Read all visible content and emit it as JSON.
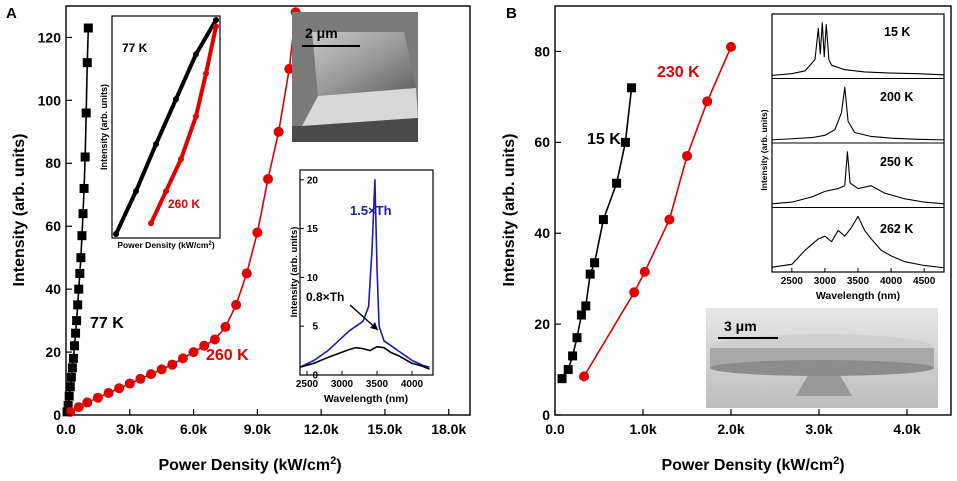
{
  "colors": {
    "black": "#000000",
    "red": "#e00000",
    "blue": "#1a1ab8",
    "sem_light": "#d4d4d4",
    "sem_dark": "#6e6e6e"
  },
  "chart_data": [
    {
      "type": "scatter",
      "panel_label": "A",
      "xlabel": "Power Density (kW/cm2)",
      "ylabel": "Intensity (arb. units)",
      "xlim": [
        0,
        19000
      ],
      "ylim": [
        0,
        130
      ],
      "xticks": [
        "0.0",
        "3.0k",
        "6.0k",
        "9.0k",
        "12.0k",
        "15.0k",
        "18.0k"
      ],
      "yticks": [
        "0",
        "20",
        "40",
        "60",
        "80",
        "100",
        "120"
      ],
      "series": [
        {
          "name": "77 K",
          "color": "#000000",
          "marker": "square",
          "x": [
            50,
            100,
            150,
            200,
            250,
            300,
            350,
            400,
            450,
            500,
            550,
            600,
            650,
            700,
            750,
            800,
            850,
            900,
            950,
            1000,
            1050
          ],
          "y": [
            1,
            3,
            6,
            9,
            12,
            15,
            18,
            22,
            26,
            30,
            35,
            40,
            45,
            50,
            57,
            64,
            72,
            82,
            96,
            112,
            123
          ]
        },
        {
          "name": "260 K",
          "color": "#e00000",
          "marker": "circle",
          "x": [
            200,
            600,
            1000,
            1500,
            2000,
            2500,
            3000,
            3500,
            4000,
            4500,
            5000,
            5500,
            6000,
            6500,
            7000,
            7500,
            8000,
            8500,
            9000,
            9500,
            10000,
            10500,
            10800
          ],
          "y": [
            1,
            2.5,
            4,
            5.5,
            7,
            8.5,
            10,
            11.5,
            13,
            14.5,
            16,
            18,
            20,
            22,
            24,
            28,
            35,
            45,
            58,
            75,
            90,
            110,
            128
          ]
        }
      ],
      "annotations": [
        {
          "text": "77 K"
        },
        {
          "text": "260 K"
        }
      ],
      "insets": [
        {
          "type": "line",
          "name": "log-log inset",
          "xlabel": "Power Density (kW/cm2)",
          "ylabel": "Intensity (arb. units)",
          "series": [
            {
              "name": "77 K",
              "color": "#000000",
              "x": [
                0,
                0.2,
                0.4,
                0.6,
                0.8,
                1.0
              ],
              "y": [
                0,
                0.2,
                0.42,
                0.63,
                0.84,
                1.0
              ]
            },
            {
              "name": "260 K",
              "color": "#e00000",
              "x": [
                0.35,
                0.5,
                0.65,
                0.8,
                0.9,
                1.0
              ],
              "y": [
                0.05,
                0.2,
                0.35,
                0.55,
                0.75,
                0.97
              ]
            }
          ]
        },
        {
          "type": "image",
          "name": "SEM micropillar",
          "scale_bar": "2 μm"
        },
        {
          "type": "line",
          "name": "spectra inset",
          "xlabel": "Wavelength (nm)",
          "ylabel": "Intensity (arb. units)",
          "xlim": [
            2400,
            4300
          ],
          "ylim": [
            0,
            21
          ],
          "xticks": [
            "2500",
            "3000",
            "3500",
            "4000"
          ],
          "yticks": [
            "0",
            "5",
            "10",
            "15",
            "20"
          ],
          "series": [
            {
              "name": "1.5×Th",
              "color": "#1a1ab8",
              "x": [
                2400,
                2600,
                2800,
                2950,
                3100,
                3200,
                3300,
                3380,
                3430,
                3470,
                3500,
                3530,
                3600,
                3700,
                3800,
                3900,
                4000,
                4150,
                4250
              ],
              "y": [
                0.8,
                1.5,
                2.5,
                3.5,
                4.5,
                5.0,
                5.5,
                7,
                13,
                20,
                11,
                5,
                3.5,
                3,
                2.5,
                2,
                1.5,
                1,
                0.8
              ]
            },
            {
              "name": "0.8×Th",
              "color": "#000000",
              "x": [
                2400,
                2600,
                2800,
                2950,
                3100,
                3200,
                3300,
                3400,
                3500,
                3600,
                3700,
                3800,
                3900,
                4000,
                4150,
                4250
              ],
              "y": [
                0.8,
                1.2,
                1.8,
                2.2,
                2.6,
                2.8,
                2.7,
                2.5,
                2.9,
                2.8,
                2.3,
                2.0,
                1.6,
                1.2,
                0.9,
                0.6
              ]
            }
          ]
        }
      ]
    },
    {
      "type": "scatter",
      "panel_label": "B",
      "xlabel": "Power Density (kW/cm2)",
      "ylabel": "Intensity (arb. units)",
      "xlim": [
        0,
        4500
      ],
      "ylim": [
        0,
        90
      ],
      "xticks": [
        "0.0",
        "1.0k",
        "2.0k",
        "3.0k",
        "4.0k"
      ],
      "yticks": [
        "0",
        "20",
        "40",
        "60",
        "80"
      ],
      "series": [
        {
          "name": "15 K",
          "color": "#000000",
          "marker": "square",
          "x": [
            80,
            150,
            200,
            250,
            300,
            350,
            400,
            450,
            550,
            700,
            800,
            870
          ],
          "y": [
            8,
            10,
            13,
            17,
            22,
            24,
            31,
            33.5,
            43,
            51,
            60,
            72
          ]
        },
        {
          "name": "230 K",
          "color": "#e00000",
          "marker": "circle",
          "x": [
            330,
            900,
            1020,
            1300,
            1500,
            1730,
            2000
          ],
          "y": [
            8.5,
            27,
            31.5,
            43,
            57,
            69,
            81
          ]
        }
      ],
      "annotations": [
        {
          "text": "15 K"
        },
        {
          "text": "230 K"
        }
      ],
      "insets": [
        {
          "type": "line",
          "name": "temperature spectra",
          "xlabel": "Wavelength (nm)",
          "ylabel": "Intensity (arb. units)",
          "xlim": [
            2200,
            4800
          ],
          "xticks": [
            "2500",
            "3000",
            "3500",
            "4000",
            "4500"
          ],
          "series": [
            {
              "name": "15 K",
              "color": "#000000",
              "x": [
                2200,
                2500,
                2700,
                2850,
                2900,
                2930,
                2960,
                2990,
                3020,
                3060,
                3100,
                3300,
                3600,
                4000,
                4400,
                4800
              ],
              "y": [
                0.02,
                0.05,
                0.1,
                0.3,
                0.85,
                0.4,
                0.95,
                0.35,
                0.92,
                0.3,
                0.2,
                0.12,
                0.08,
                0.06,
                0.05,
                0.03
              ]
            },
            {
              "name": "200 K",
              "color": "#000000",
              "x": [
                2200,
                2500,
                2800,
                3000,
                3150,
                3250,
                3300,
                3350,
                3450,
                3700,
                4000,
                4400,
                4800
              ],
              "y": [
                0.02,
                0.04,
                0.06,
                0.1,
                0.2,
                0.5,
                0.95,
                0.35,
                0.15,
                0.08,
                0.05,
                0.03,
                0.02
              ]
            },
            {
              "name": "250 K",
              "color": "#000000",
              "x": [
                2200,
                2500,
                2800,
                3000,
                3200,
                3300,
                3340,
                3380,
                3500,
                3700,
                3900,
                4200,
                4500,
                4800
              ],
              "y": [
                0.03,
                0.06,
                0.15,
                0.25,
                0.3,
                0.35,
                0.95,
                0.4,
                0.3,
                0.35,
                0.22,
                0.12,
                0.06,
                0.03
              ]
            },
            {
              "name": "262 K",
              "color": "#000000",
              "x": [
                2200,
                2500,
                2700,
                2900,
                3000,
                3100,
                3200,
                3300,
                3400,
                3500,
                3600,
                3700,
                3850,
                4000,
                4200,
                4500,
                4800
              ],
              "y": [
                0.05,
                0.1,
                0.35,
                0.55,
                0.6,
                0.5,
                0.7,
                0.6,
                0.75,
                0.95,
                0.7,
                0.55,
                0.35,
                0.25,
                0.15,
                0.08,
                0.04
              ]
            }
          ]
        },
        {
          "type": "image",
          "name": "SEM microdisk",
          "scale_bar": "3 μm"
        }
      ]
    }
  ]
}
